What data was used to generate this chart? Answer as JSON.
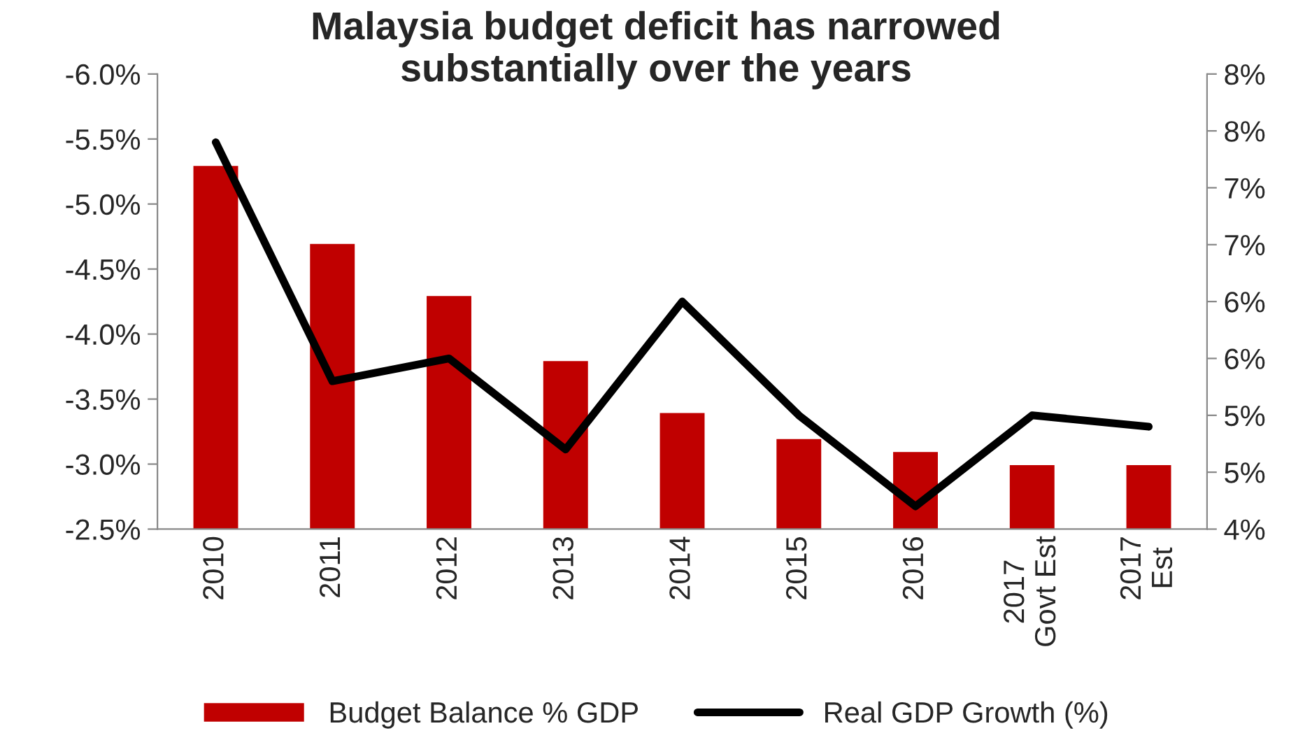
{
  "chart_data": {
    "type": "bar",
    "title": "Malaysia budget deficit has narrowed\nsubstantially over the years",
    "categories": [
      "2010",
      "2011",
      "2012",
      "2013",
      "2014",
      "2015",
      "2016",
      "2017\nGovt Est",
      "2017\nEst"
    ],
    "series": [
      {
        "name": "Budget Balance % GDP",
        "color": "#c00000",
        "values": [
          -5.3,
          -4.7,
          -4.3,
          -3.8,
          -3.4,
          -3.2,
          -3.1,
          -3.0,
          -3.0
        ]
      },
      {
        "name": "Real GDP Growth (%)",
        "type": "line",
        "axis": "y2",
        "color": "#000000",
        "values": [
          7.4,
          5.3,
          5.5,
          4.7,
          6.0,
          5.0,
          4.2,
          5.0,
          4.9
        ]
      }
    ],
    "ylim": [
      -2.5,
      -6.0
    ],
    "yticks": [
      {
        "value": -6.0,
        "label": "-6.0%"
      },
      {
        "value": -5.5,
        "label": "-5.5%"
      },
      {
        "value": -5.0,
        "label": "-5.0%"
      },
      {
        "value": -4.5,
        "label": "-4.5%"
      },
      {
        "value": -4.0,
        "label": "-4.0%"
      },
      {
        "value": -3.5,
        "label": "-3.5%"
      },
      {
        "value": -3.0,
        "label": "-3.0%"
      },
      {
        "value": -2.5,
        "label": "-2.5%"
      }
    ],
    "y2lim": [
      4,
      8
    ],
    "y2ticks": [
      {
        "value": 4,
        "label": "4%"
      },
      {
        "value": 4.5,
        "label": "5%"
      },
      {
        "value": 5,
        "label": "5%"
      },
      {
        "value": 5.5,
        "label": "6%"
      },
      {
        "value": 6,
        "label": "6%"
      },
      {
        "value": 6.5,
        "label": "7%"
      },
      {
        "value": 7,
        "label": "7%"
      },
      {
        "value": 7.5,
        "label": "8%"
      },
      {
        "value": 8,
        "label": "8%"
      }
    ],
    "legend": "bottom",
    "grid": false,
    "line_style": "solid",
    "marker": "none"
  }
}
